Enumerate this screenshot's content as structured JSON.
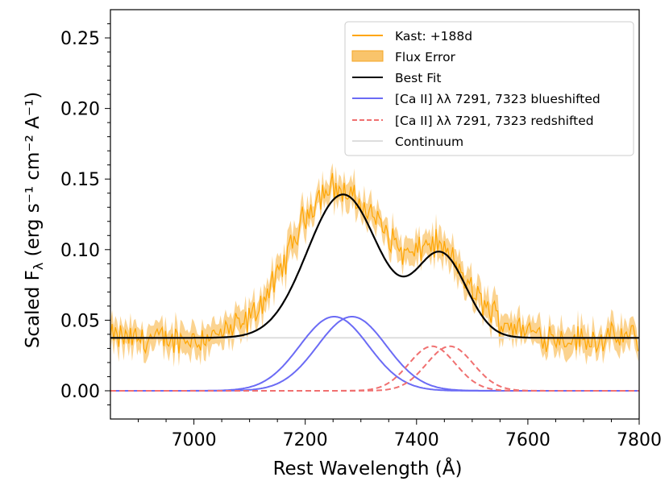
{
  "chart_data": {
    "type": "line",
    "xlabel": "Rest Wavelength (Å)",
    "ylabel": {
      "prefix": "Scaled F",
      "sub": "λ",
      "units": " (erg s⁻¹ cm⁻² A⁻¹)"
    },
    "xlim": [
      6850,
      7800
    ],
    "ylim": [
      -0.02,
      0.27
    ],
    "xticks": [
      7000,
      7200,
      7400,
      7600,
      7800
    ],
    "yticks": [
      0.0,
      0.05,
      0.1,
      0.15,
      0.2,
      0.25
    ],
    "ytick_labels": [
      "0.00",
      "0.05",
      "0.10",
      "0.15",
      "0.20",
      "0.25"
    ],
    "legend_position": "upper right",
    "continuum": 0.0375,
    "components": [
      {
        "name": "blue-1",
        "center": 7252,
        "amplitude": 0.0525,
        "sigma": 62,
        "color": "#6b6bf5",
        "style": "solid"
      },
      {
        "name": "blue-2",
        "center": 7284,
        "amplitude": 0.0525,
        "sigma": 62,
        "color": "#6b6bf5",
        "style": "solid"
      },
      {
        "name": "red-1",
        "center": 7428,
        "amplitude": 0.0315,
        "sigma": 42,
        "color": "#f07070",
        "style": "dashed"
      },
      {
        "name": "red-2",
        "center": 7460,
        "amplitude": 0.0315,
        "sigma": 42,
        "color": "#f07070",
        "style": "dashed"
      }
    ],
    "observed_key": [
      [
        6850,
        0.038
      ],
      [
        6900,
        0.037
      ],
      [
        6950,
        0.036
      ],
      [
        7000,
        0.037
      ],
      [
        7050,
        0.04
      ],
      [
        7100,
        0.05
      ],
      [
        7150,
        0.08
      ],
      [
        7200,
        0.125
      ],
      [
        7230,
        0.14
      ],
      [
        7250,
        0.145
      ],
      [
        7280,
        0.138
      ],
      [
        7320,
        0.125
      ],
      [
        7350,
        0.11
      ],
      [
        7380,
        0.096
      ],
      [
        7400,
        0.097
      ],
      [
        7420,
        0.105
      ],
      [
        7440,
        0.103
      ],
      [
        7470,
        0.09
      ],
      [
        7500,
        0.07
      ],
      [
        7550,
        0.05
      ],
      [
        7600,
        0.042
      ],
      [
        7650,
        0.038
      ],
      [
        7700,
        0.036
      ],
      [
        7750,
        0.037
      ],
      [
        7800,
        0.038
      ]
    ],
    "series": [
      {
        "name": "Kast: +188d",
        "color": "#ffa500",
        "style": "line"
      },
      {
        "name": "Flux Error",
        "color": "#f9c46b",
        "style": "band"
      },
      {
        "name": "Best Fit",
        "color": "#000000",
        "style": "line"
      },
      {
        "name": "[Ca II] λλ 7291, 7323 blueshifted",
        "color": "#6b6bf5",
        "style": "line"
      },
      {
        "name": "[Ca II] λλ 7291, 7323 redshifted",
        "color": "#f07070",
        "style": "dashed"
      },
      {
        "name": "Continuum",
        "color": "#dddddd",
        "style": "line"
      }
    ]
  }
}
